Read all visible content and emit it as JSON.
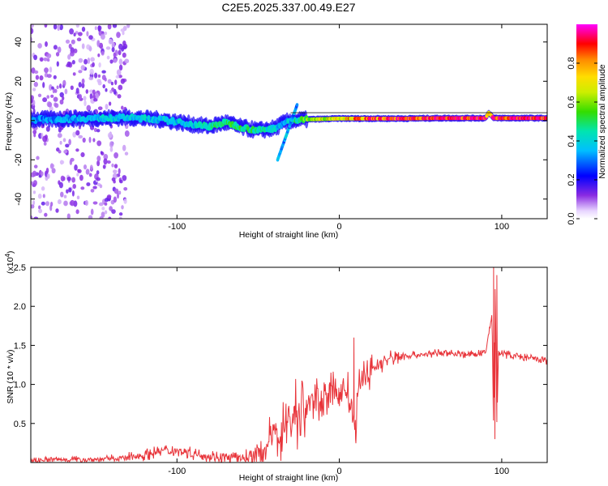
{
  "title": "C2E5.2025.337.00.49.E27",
  "colors": {
    "snr_line": "#e8343a",
    "axis": "#000000",
    "background": "#ffffff"
  },
  "chart_data": [
    {
      "type": "heatmap",
      "name": "spectrogram",
      "xlabel": "Height of straight line (km)",
      "ylabel": "Frequency (Hz)",
      "xlim": [
        -190,
        128
      ],
      "ylim": [
        -50,
        49
      ],
      "xticks": [
        -100,
        0,
        100
      ],
      "yticks": [
        -40,
        -20,
        0,
        20,
        40
      ],
      "xtick_labels": [
        "-100",
        "0",
        "100"
      ],
      "ytick_labels": [
        "-40",
        "-20",
        "0",
        "20",
        "40"
      ],
      "colorbar": {
        "label": "Normalized spectral amplitude",
        "range": [
          0,
          1
        ],
        "ticks": [
          0.0,
          0.2,
          0.4,
          0.6,
          0.8
        ],
        "tick_labels": [
          "0.0",
          "0.2",
          "0.4",
          "0.6",
          "0.8"
        ],
        "colormap": "rainbow (purple-blue-cyan-green-yellow-red-magenta)"
      },
      "ridge": {
        "description": "dominant spectral line near 0 Hz",
        "x": [
          -190,
          -160,
          -130,
          -110,
          -90,
          -80,
          -70,
          -60,
          -50,
          -40,
          -35,
          -30,
          -20,
          0,
          20,
          40,
          60,
          80,
          90,
          92,
          95,
          110,
          128
        ],
        "y": [
          0.5,
          1.0,
          1.5,
          0.5,
          -2.0,
          -3.0,
          -1.0,
          -3.5,
          -5.0,
          -4.0,
          -1.5,
          0.0,
          0.5,
          1.0,
          1.0,
          1.0,
          1.2,
          1.2,
          1.2,
          4.0,
          1.2,
          1.2,
          1.2
        ],
        "amplitude": [
          0.3,
          0.35,
          0.4,
          0.38,
          0.4,
          0.45,
          0.5,
          0.5,
          0.45,
          0.4,
          0.35,
          0.4,
          0.6,
          0.75,
          0.85,
          0.9,
          0.95,
          0.95,
          0.95,
          0.7,
          0.95,
          0.95,
          0.95
        ]
      },
      "noise_region_x": [
        -190,
        -130
      ]
    },
    {
      "type": "line",
      "name": "snr",
      "xlabel": "Height of straight line (km)",
      "ylabel": "SNR (10 * v/v)",
      "scale_label_base": "(x10",
      "scale_label_exp": "4",
      "scale_label_end": ")",
      "xlim": [
        -190,
        128
      ],
      "ylim": [
        0,
        2.5
      ],
      "xticks": [
        -100,
        0,
        100
      ],
      "yticks": [
        0.5,
        1.0,
        1.5,
        2.0,
        2.5
      ],
      "xtick_labels": [
        "-100",
        "0",
        "100"
      ],
      "ytick_labels": [
        "0.5",
        "1.0",
        "1.5",
        "2.0",
        "2.5"
      ],
      "series": [
        {
          "name": "SNR",
          "x": [
            -190,
            -170,
            -150,
            -140,
            -130,
            -120,
            -110,
            -100,
            -90,
            -80,
            -70,
            -60,
            -50,
            -45,
            -40,
            -35,
            -30,
            -25,
            -20,
            -15,
            -10,
            -5,
            0,
            5,
            8,
            10,
            12,
            15,
            20,
            30,
            40,
            50,
            60,
            70,
            80,
            90,
            94,
            95,
            96,
            97,
            98,
            100,
            110,
            128
          ],
          "y": [
            0.03,
            0.04,
            0.04,
            0.05,
            0.06,
            0.1,
            0.15,
            0.16,
            0.12,
            0.08,
            0.06,
            0.06,
            0.08,
            0.2,
            0.35,
            0.45,
            0.55,
            0.65,
            0.72,
            0.8,
            0.85,
            0.88,
            0.9,
            0.95,
            0.6,
            0.4,
            0.95,
            1.1,
            1.2,
            1.32,
            1.37,
            1.38,
            1.4,
            1.4,
            1.38,
            1.4,
            1.9,
            0.4,
            2.3,
            0.5,
            1.4,
            1.4,
            1.36,
            1.3
          ]
        }
      ],
      "spikes": [
        {
          "x": 9,
          "y": 1.6
        },
        {
          "x": 10,
          "y": 0.3
        },
        {
          "x": 95,
          "y": 2.5
        },
        {
          "x": 95.8,
          "y": 0.3
        },
        {
          "x": 97,
          "y": 2.4
        }
      ]
    }
  ]
}
